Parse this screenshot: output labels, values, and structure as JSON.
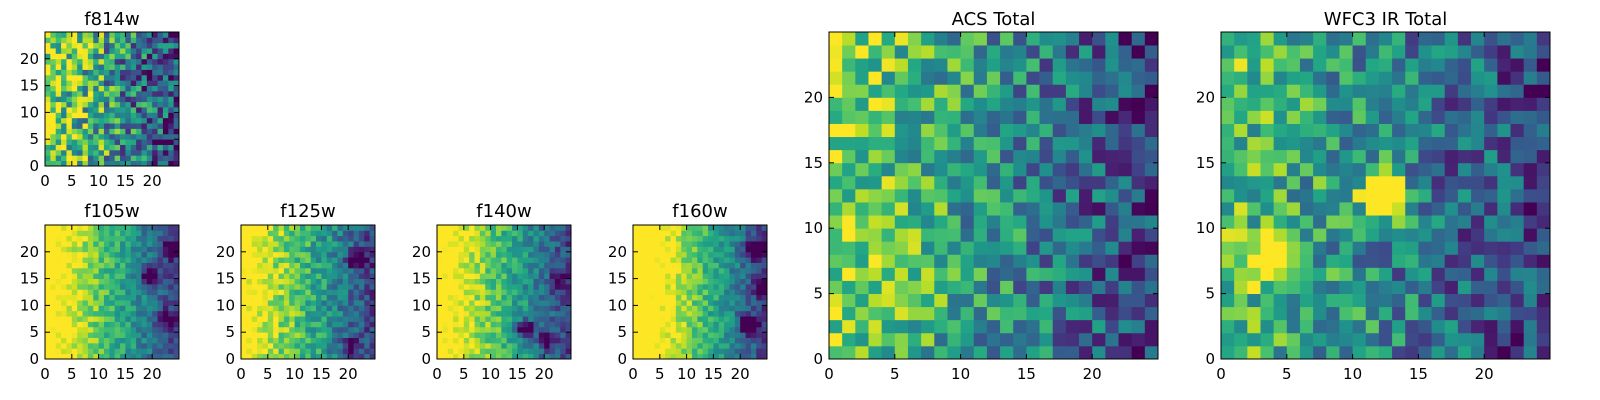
{
  "chart_data": [
    {
      "id": "f814w",
      "type": "heatmap",
      "title": "f814w",
      "xticks": [
        0,
        5,
        10,
        15,
        20
      ],
      "yticks": [
        0,
        5,
        10,
        15,
        20
      ],
      "grid_size": 25,
      "xlim": [
        0,
        25
      ],
      "ylim": [
        0,
        25
      ],
      "pattern": {
        "gradient": 0.9,
        "noise": 0.75,
        "blobs": [],
        "seed": 11
      }
    },
    {
      "id": "f105w",
      "type": "heatmap",
      "title": "f105w",
      "xticks": [
        0,
        5,
        10,
        15,
        20
      ],
      "yticks": [
        0,
        5,
        10,
        15,
        20
      ],
      "grid_size": 25,
      "xlim": [
        0,
        25
      ],
      "ylim": [
        0,
        25
      ],
      "pattern": {
        "gradient": 1.25,
        "noise": 0.28,
        "blobs": [
          [
            19,
            15,
            -0.7
          ],
          [
            23,
            20,
            -0.5
          ],
          [
            22,
            7,
            -0.4
          ]
        ],
        "seed": 23
      }
    },
    {
      "id": "f125w",
      "type": "heatmap",
      "title": "f125w",
      "xticks": [
        0,
        5,
        10,
        15,
        20
      ],
      "yticks": [
        0,
        5,
        10,
        15,
        20
      ],
      "grid_size": 25,
      "xlim": [
        0,
        25
      ],
      "ylim": [
        0,
        25
      ],
      "pattern": {
        "gradient": 1.2,
        "noise": 0.35,
        "blobs": [
          [
            20,
            2,
            -0.5
          ],
          [
            21,
            18,
            -0.5
          ]
        ],
        "seed": 37
      }
    },
    {
      "id": "f140w",
      "type": "heatmap",
      "title": "f140w",
      "xticks": [
        0,
        5,
        10,
        15,
        20
      ],
      "yticks": [
        0,
        5,
        10,
        15,
        20
      ],
      "grid_size": 25,
      "xlim": [
        0,
        25
      ],
      "ylim": [
        0,
        25
      ],
      "pattern": {
        "gradient": 1.25,
        "noise": 0.3,
        "blobs": [
          [
            16,
            5,
            -0.8
          ],
          [
            20,
            3,
            -0.5
          ],
          [
            22,
            14,
            -0.4
          ]
        ],
        "seed": 41
      }
    },
    {
      "id": "f160w",
      "type": "heatmap",
      "title": "f160w",
      "xticks": [
        0,
        5,
        10,
        15,
        20
      ],
      "yticks": [
        0,
        5,
        10,
        15,
        20
      ],
      "grid_size": 25,
      "xlim": [
        0,
        25
      ],
      "ylim": [
        0,
        25
      ],
      "pattern": {
        "gradient": 1.4,
        "noise": 0.28,
        "blobs": [
          [
            21,
            6,
            -0.8
          ],
          [
            22,
            20,
            -0.6
          ],
          [
            24,
            13,
            -0.5
          ]
        ],
        "seed": 53
      }
    },
    {
      "id": "acs-total",
      "type": "heatmap",
      "title": "ACS Total",
      "xticks": [
        0,
        5,
        10,
        15,
        20
      ],
      "yticks": [
        0,
        5,
        10,
        15,
        20
      ],
      "grid_size": 25,
      "xlim": [
        0,
        25
      ],
      "ylim": [
        0,
        25
      ],
      "pattern": {
        "gradient": 0.85,
        "noise": 0.55,
        "blobs": [],
        "seed": 67
      }
    },
    {
      "id": "wfc3-ir-total",
      "type": "heatmap",
      "title": "WFC3 IR Total",
      "xticks": [
        0,
        5,
        10,
        15,
        20
      ],
      "yticks": [
        0,
        5,
        10,
        15,
        20
      ],
      "grid_size": 25,
      "xlim": [
        0,
        25
      ],
      "ylim": [
        0,
        25
      ],
      "pattern": {
        "gradient": 0.7,
        "noise": 0.55,
        "blobs": [
          [
            12,
            12,
            1.4
          ],
          [
            3,
            7,
            0.9
          ]
        ],
        "seed": 79
      }
    }
  ]
}
